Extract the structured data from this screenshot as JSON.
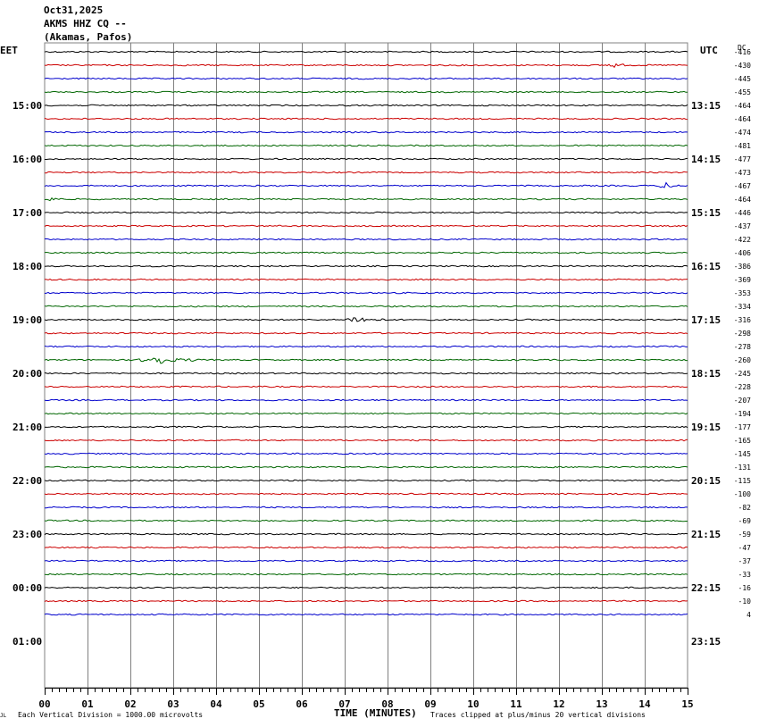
{
  "header": {
    "date": "Oct31,2025",
    "station": "AKMS HHZ CQ --",
    "location": "(Akamas, Pafos)"
  },
  "left_zone_label": "EET",
  "right_zone_label": "UTC",
  "dc_label": "DC",
  "footer": {
    "division_note": "Each Vertical Division = 1000.00 microvolts",
    "x_axis_title": "TIME (MINUTES)",
    "clip_note": "Traces clipped at plus/minus 20 vertical divisions",
    "corner_mark": "JL"
  },
  "colors": {
    "trace_cycle": [
      "#000000",
      "#cc0000",
      "#0000cc",
      "#006600"
    ],
    "grid": "#808080"
  },
  "chart_data": {
    "type": "line",
    "title": "AKMS HHZ CQ --",
    "xlabel": "TIME (MINUTES)",
    "xlim": [
      0,
      15
    ],
    "x_ticks": [
      "00",
      "01",
      "02",
      "03",
      "04",
      "05",
      "06",
      "07",
      "08",
      "09",
      "10",
      "11",
      "12",
      "13",
      "14",
      "15"
    ],
    "eet_hour_labels": [
      "15:00",
      "16:00",
      "17:00",
      "18:00",
      "19:00",
      "20:00",
      "21:00",
      "22:00",
      "23:00",
      "00:00",
      "01:00"
    ],
    "utc_hour_labels": [
      "13:15",
      "14:15",
      "15:15",
      "16:15",
      "17:15",
      "18:15",
      "19:15",
      "20:15",
      "21:15",
      "22:15",
      "23:15"
    ],
    "hour_label_first_trace": 4,
    "traces_per_hour": 4,
    "trace_count": 43,
    "dc_offsets": [
      -416,
      -430,
      -445,
      -455,
      -464,
      -464,
      -474,
      -481,
      -477,
      -473,
      -467,
      -464,
      -446,
      -437,
      -422,
      -406,
      -386,
      -369,
      -353,
      -334,
      -316,
      -298,
      -278,
      -260,
      -245,
      -228,
      -207,
      -194,
      -177,
      -165,
      -145,
      -131,
      -115,
      -100,
      -82,
      -69,
      -59,
      -47,
      -37,
      -33,
      -16,
      -10,
      4
    ],
    "events": [
      {
        "trace": 1,
        "start_min": 13.0,
        "end_min": 14.0,
        "amplitude_div": 0.5
      },
      {
        "trace": 10,
        "start_min": 14.3,
        "end_min": 15.0,
        "amplitude_div": 0.7
      },
      {
        "trace": 11,
        "start_min": 0.0,
        "end_min": 0.5,
        "amplitude_div": 0.6
      },
      {
        "trace": 20,
        "start_min": 7.0,
        "end_min": 8.0,
        "amplitude_div": 0.8
      },
      {
        "trace": 23,
        "start_min": 2.2,
        "end_min": 3.6,
        "amplitude_div": 1.1
      },
      {
        "trace": 36,
        "start_min": 11.0,
        "end_min": 11.5,
        "amplitude_div": 0.3
      }
    ]
  }
}
